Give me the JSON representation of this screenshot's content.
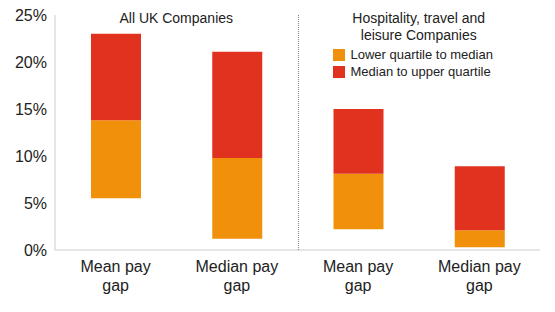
{
  "chart_data": {
    "type": "bar",
    "stacked": true,
    "group_titles": [
      "All UK Companies",
      "Hospitality, travel and leisure Companies"
    ],
    "categories": [
      "Mean pay gap",
      "Median pay gap",
      "Mean pay gap",
      "Median pay gap"
    ],
    "lower_quartile": [
      5.5,
      1.2,
      2.2,
      0.3
    ],
    "series": [
      {
        "name": "Lower quartile to median",
        "color": "#f0900b",
        "values": [
          8.3,
          8.6,
          5.9,
          1.8
        ]
      },
      {
        "name": "Median to upper quartile",
        "color": "#e1321f",
        "values": [
          9.2,
          11.3,
          6.9,
          6.8
        ]
      }
    ],
    "ylim": [
      0,
      25
    ],
    "yticks": [
      {
        "value": 0,
        "label": "0%"
      },
      {
        "value": 5,
        "label": "5%"
      },
      {
        "value": 10,
        "label": "10%"
      },
      {
        "value": 15,
        "label": "15%"
      },
      {
        "value": 20,
        "label": "20%"
      },
      {
        "value": 25,
        "label": "25%"
      }
    ],
    "grid": false,
    "legend": "top-right"
  }
}
